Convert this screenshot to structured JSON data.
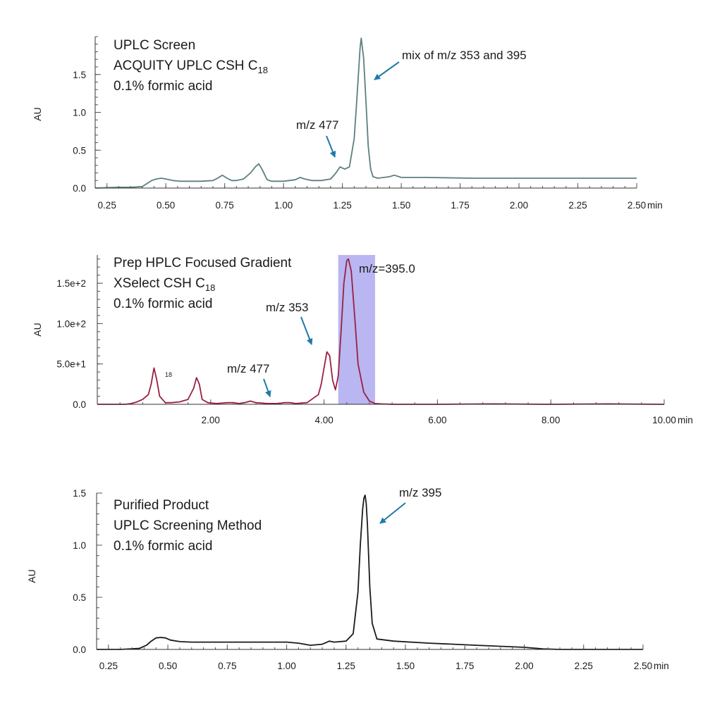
{
  "colors": {
    "arrow": "#1f7aa8",
    "highlight": "#b9b6f2"
  },
  "chart_data": [
    {
      "type": "line",
      "title_lines": [
        "UPLC Screen",
        "ACQUITY UPLC CSH C",
        "0.1% formic acid"
      ],
      "title_subscript": "18",
      "ylabel": "AU",
      "xunit": "min",
      "xlim": [
        0.2,
        2.5
      ],
      "ylim": [
        0,
        2.0
      ],
      "xticks": [
        0.25,
        0.5,
        0.75,
        1.0,
        1.25,
        1.5,
        1.75,
        2.0,
        2.25,
        2.5
      ],
      "xtick_labels": [
        "0.25",
        "0.50",
        "0.75",
        "1.00",
        "1.25",
        "1.50",
        "1.75",
        "2.00",
        "2.25",
        "2.50"
      ],
      "yticks": [
        0,
        0.5,
        1.0,
        1.5
      ],
      "ytick_labels": [
        "0.0",
        "0.5",
        "1.0",
        "1.5"
      ],
      "color": "#5d7f80",
      "series": [
        {
          "x": [
            0.2,
            0.3,
            0.35,
            0.4,
            0.42,
            0.44,
            0.46,
            0.48,
            0.5,
            0.53,
            0.56,
            0.6,
            0.65,
            0.7,
            0.72,
            0.74,
            0.76,
            0.78,
            0.8,
            0.83,
            0.86,
            0.88,
            0.895,
            0.91,
            0.93,
            0.95,
            1.0,
            1.05,
            1.07,
            1.09,
            1.12,
            1.16,
            1.2,
            1.22,
            1.24,
            1.26,
            1.28,
            1.3,
            1.31,
            1.32,
            1.325,
            1.33,
            1.34,
            1.35,
            1.36,
            1.37,
            1.38,
            1.4,
            1.45,
            1.47,
            1.5,
            1.6,
            1.8,
            2.0,
            2.2,
            2.4,
            2.5
          ],
          "y": [
            0.0,
            0.01,
            0.01,
            0.02,
            0.06,
            0.1,
            0.12,
            0.13,
            0.12,
            0.1,
            0.09,
            0.09,
            0.09,
            0.1,
            0.13,
            0.17,
            0.13,
            0.1,
            0.1,
            0.12,
            0.2,
            0.28,
            0.32,
            0.24,
            0.11,
            0.09,
            0.09,
            0.11,
            0.14,
            0.12,
            0.1,
            0.1,
            0.12,
            0.19,
            0.28,
            0.25,
            0.28,
            0.65,
            1.1,
            1.6,
            1.85,
            1.98,
            1.72,
            1.15,
            0.55,
            0.25,
            0.15,
            0.13,
            0.15,
            0.17,
            0.14,
            0.14,
            0.13,
            0.13,
            0.13,
            0.13,
            0.13
          ]
        }
      ],
      "annotations": [
        {
          "text": "mix of m/z 353 and 395",
          "x": 1.35,
          "y": 1.45
        },
        {
          "text": "m/z 477",
          "x": 1.24,
          "y": 0.42
        }
      ]
    },
    {
      "type": "line",
      "title_lines": [
        "Prep HPLC Focused Gradient",
        "XSelect CSH C",
        "0.1% formic acid"
      ],
      "title_subscript": "18",
      "stray_label": "18",
      "ylabel": "AU",
      "xunit": "min",
      "xlim": [
        0,
        10
      ],
      "ylim": [
        0,
        185
      ],
      "xticks": [
        2,
        4,
        6,
        8,
        10
      ],
      "xtick_labels": [
        "2.00",
        "4.00",
        "6.00",
        "8.00",
        "10.00"
      ],
      "yticks": [
        0,
        50,
        100,
        150
      ],
      "ytick_labels": [
        "0.0",
        "5.0e+1",
        "1.0e+2",
        "1.5e+2"
      ],
      "color": "#9c1f3f",
      "highlight_range": [
        4.25,
        4.9
      ],
      "series": [
        {
          "x": [
            0,
            0.5,
            0.6,
            0.7,
            0.8,
            0.9,
            0.95,
            1.0,
            1.05,
            1.1,
            1.2,
            1.3,
            1.45,
            1.6,
            1.7,
            1.75,
            1.8,
            1.85,
            1.95,
            2.1,
            2.3,
            2.4,
            2.5,
            2.6,
            2.7,
            2.8,
            3.0,
            3.2,
            3.3,
            3.4,
            3.5,
            3.7,
            3.9,
            3.95,
            4.0,
            4.05,
            4.1,
            4.15,
            4.2,
            4.25,
            4.3,
            4.35,
            4.4,
            4.43,
            4.48,
            4.55,
            4.6,
            4.7,
            4.8,
            4.9,
            5.0,
            5.2,
            6.0,
            7.0,
            8.0,
            9.0,
            10.0
          ],
          "y": [
            0,
            0,
            1,
            3,
            6,
            12,
            25,
            45,
            30,
            10,
            2,
            2,
            3,
            6,
            20,
            33,
            25,
            6,
            2,
            1,
            2,
            2,
            1,
            2,
            4,
            2,
            1,
            1,
            2,
            2,
            1,
            2,
            12,
            25,
            45,
            65,
            60,
            30,
            18,
            35,
            90,
            150,
            178,
            180,
            165,
            100,
            50,
            15,
            4,
            1,
            0.5,
            0,
            0,
            0.5,
            0,
            0.5,
            0
          ]
        }
      ],
      "annotations": [
        {
          "text": "m/z=395.0",
          "x": 4.43,
          "y": 180
        },
        {
          "text": "m/z 353",
          "x": 4.05,
          "y": 65
        },
        {
          "text": "m/z 477",
          "x": 3.25,
          "y": 4
        }
      ]
    },
    {
      "type": "line",
      "title_lines": [
        "Purified Product",
        "UPLC Screening Method",
        "0.1% formic acid"
      ],
      "ylabel": "AU",
      "xunit": "min",
      "xlim": [
        0.2,
        2.5
      ],
      "ylim": [
        0,
        1.5
      ],
      "xticks": [
        0.25,
        0.5,
        0.75,
        1.0,
        1.25,
        1.5,
        1.75,
        2.0,
        2.25,
        2.5
      ],
      "xtick_labels": [
        "0.25",
        "0.50",
        "0.75",
        "1.00",
        "1.25",
        "1.50",
        "1.75",
        "2.00",
        "2.25",
        "2.50"
      ],
      "yticks": [
        0,
        0.5,
        1.0,
        1.5
      ],
      "ytick_labels": [
        "0.0",
        "0.5",
        "1.0",
        "1.5"
      ],
      "color": "#1a1a1a",
      "series": [
        {
          "x": [
            0.2,
            0.3,
            0.38,
            0.41,
            0.43,
            0.45,
            0.47,
            0.49,
            0.51,
            0.55,
            0.6,
            0.8,
            1.0,
            1.05,
            1.1,
            1.15,
            1.18,
            1.2,
            1.25,
            1.28,
            1.3,
            1.31,
            1.32,
            1.325,
            1.33,
            1.335,
            1.34,
            1.35,
            1.36,
            1.38,
            1.45,
            1.6,
            1.8,
            2.0,
            2.08,
            2.15,
            2.3,
            2.5
          ],
          "y": [
            0,
            0,
            0.01,
            0.04,
            0.08,
            0.11,
            0.115,
            0.11,
            0.09,
            0.075,
            0.07,
            0.07,
            0.07,
            0.06,
            0.04,
            0.05,
            0.08,
            0.07,
            0.08,
            0.15,
            0.55,
            1.0,
            1.35,
            1.45,
            1.48,
            1.4,
            1.2,
            0.6,
            0.25,
            0.1,
            0.08,
            0.06,
            0.04,
            0.02,
            0.005,
            0,
            0,
            0
          ]
        }
      ],
      "annotations": [
        {
          "text": "m/z 395",
          "x": 1.35,
          "y": 1.22
        }
      ]
    }
  ]
}
